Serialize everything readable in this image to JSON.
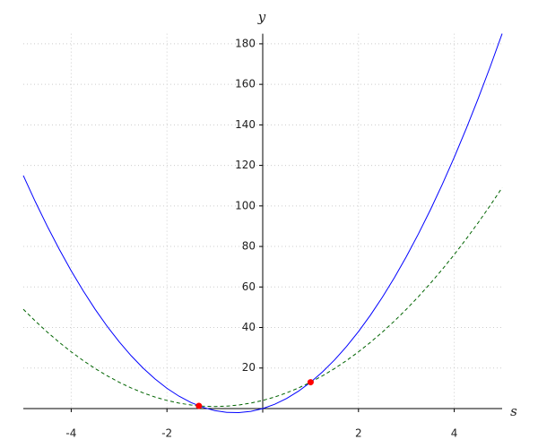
{
  "chart_data": {
    "type": "line",
    "x_label": "s",
    "y_label": "y",
    "x": [
      -5,
      -4.75,
      -4.5,
      -4.25,
      -4,
      -3.75,
      -3.5,
      -3.25,
      -3,
      -2.75,
      -2.5,
      -2.25,
      -2,
      -1.75,
      -1.5,
      -1.25,
      -1,
      -0.75,
      -0.5,
      -0.25,
      0,
      0.25,
      0.5,
      0.75,
      1,
      1.25,
      1.5,
      1.75,
      2,
      2.25,
      2.5,
      2.75,
      3,
      3.25,
      3.5,
      3.75,
      4,
      4.25,
      4.5,
      4.75,
      5
    ],
    "series": [
      {
        "color": "#0000ff",
        "dash": "solid",
        "values": [
          115,
          102.125,
          90,
          78.625,
          68,
          58.125,
          49,
          40.625,
          33,
          26.125,
          20,
          14.625,
          10,
          6.125,
          3,
          0.625,
          -1,
          -1.875,
          -2,
          -1.375,
          0,
          2.125,
          5,
          8.625,
          13,
          18.125,
          24,
          30.625,
          38,
          46.125,
          55,
          64.625,
          75,
          86.125,
          98,
          110.625,
          124,
          138.125,
          153,
          168.625,
          185
        ]
      },
      {
        "color": "#006400",
        "dash": "dashed",
        "values": [
          49,
          43.1875,
          37.75,
          32.6875,
          28,
          23.6875,
          19.75,
          16.1875,
          13,
          10.1875,
          7.75,
          5.6875,
          4,
          2.6875,
          1.75,
          1.1875,
          1,
          1.1875,
          1.75,
          2.6875,
          4,
          5.6875,
          7.75,
          10.1875,
          13,
          16.1875,
          19.75,
          23.6875,
          28,
          32.6875,
          37.75,
          43.1875,
          49,
          55.1875,
          61.75,
          68.6875,
          76,
          83.6875,
          91.75,
          100.1875,
          109
        ]
      }
    ],
    "points": {
      "color": "#ff0000",
      "x": [
        -1.333,
        1
      ],
      "y": [
        1.333,
        13
      ]
    },
    "xlim": [
      -5,
      5
    ],
    "ylim": [
      -2,
      185
    ],
    "xticks": [
      -4,
      -2,
      2,
      4
    ],
    "yticks": [
      20,
      40,
      60,
      80,
      100,
      120,
      140,
      160,
      180
    ],
    "grid": true
  }
}
